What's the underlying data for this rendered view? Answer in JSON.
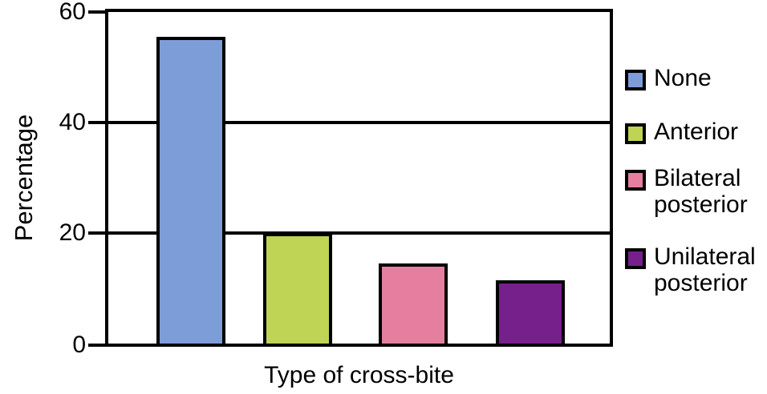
{
  "chart_data": {
    "type": "bar",
    "title": "",
    "xlabel": "Type of cross-bite",
    "ylabel": "Percentage",
    "categories": [
      "None",
      "Anterior",
      "Bilateral posterior",
      "Unilateral posterior"
    ],
    "values": [
      55.5,
      20,
      14.5,
      11.5
    ],
    "bar_colors": [
      "#7d9dd8",
      "#bfd355",
      "#e67f9f",
      "#76208c"
    ],
    "ylim": [
      0,
      60
    ],
    "yticks": [
      0,
      20,
      40,
      60
    ],
    "grid": "horizontal-only",
    "plot_border": "full-box-black",
    "legend_position": "right",
    "legend": [
      {
        "label": "None",
        "color": "#7d9dd8"
      },
      {
        "label": "Anterior",
        "color": "#bfd355"
      },
      {
        "label": "Bilateral posterior",
        "color": "#e67f9f"
      },
      {
        "label": "Unilateral posterior",
        "color": "#76208c"
      }
    ],
    "axis_color": "#000000",
    "text_color": "#000000",
    "background_color": "#ffffff"
  }
}
